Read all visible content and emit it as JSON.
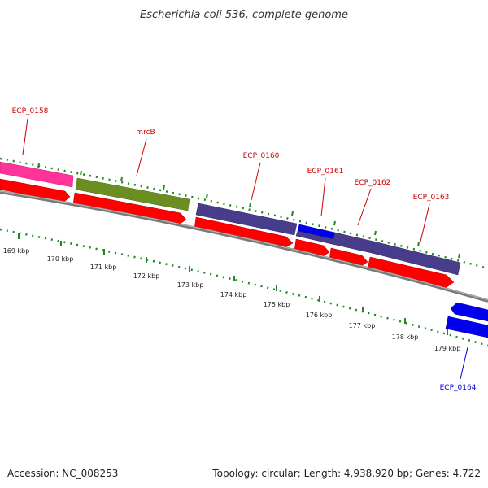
{
  "title": "Escherichia coli 536, complete genome",
  "footer": {
    "accession": "Accession: NC_008253",
    "summary": "Topology: circular; Length: 4,938,920 bp; Genes: 4,722"
  },
  "colors": {
    "label_forward": "#cc0000",
    "label_reverse": "#0000cc",
    "cds": "#ff0000",
    "backbone": "#888888",
    "tick": "#228822"
  },
  "scale_labels": [
    "169 kbp",
    "170 kbp",
    "171 kbp",
    "172 kbp",
    "173 kbp",
    "174 kbp",
    "175 kbp",
    "176 kbp",
    "177 kbp",
    "178 kbp",
    "179 kbp"
  ],
  "genes": [
    {
      "name": "ECP_0158",
      "color": "#ff3399",
      "strand": "forward"
    },
    {
      "name": "mrcB",
      "color": "#6b8e23",
      "strand": "forward"
    },
    {
      "name": "ECP_0160",
      "color": "#483d8b",
      "strand": "forward"
    },
    {
      "name": "ECP_0161",
      "color": "#0000ee",
      "strand": "forward"
    },
    {
      "name": "ECP_0162",
      "color": "#483d8b",
      "strand": "forward"
    },
    {
      "name": "ECP_0163",
      "color": "#483d8b",
      "strand": "forward"
    },
    {
      "name": "ECP_0164",
      "color": "#0000ee",
      "strand": "reverse"
    }
  ]
}
